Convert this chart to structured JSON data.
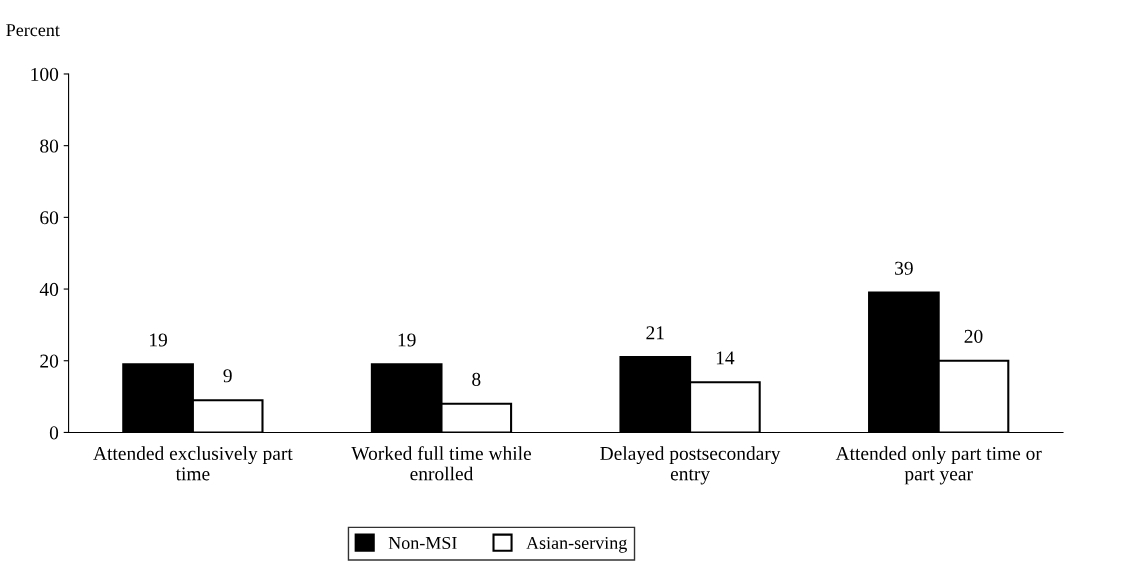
{
  "chart_data": {
    "type": "bar",
    "ylabel": "Percent",
    "categories": [
      "Attended exclusively part\ntime",
      "Worked full time while\nenrolled",
      "Delayed postsecondary\nentry",
      "Attended only part time or\npart year"
    ],
    "series": [
      {
        "name": "Non-MSI",
        "color": "#000000",
        "values": [
          19,
          19,
          21,
          39
        ]
      },
      {
        "name": "Asian-serving",
        "color": "#ffffff",
        "values": [
          9,
          8,
          14,
          20
        ]
      }
    ],
    "ylim": [
      0,
      100
    ],
    "yticks": [
      0,
      20,
      40,
      60,
      80,
      100
    ],
    "grid": false,
    "legend": "bottom",
    "data_labels": true
  }
}
